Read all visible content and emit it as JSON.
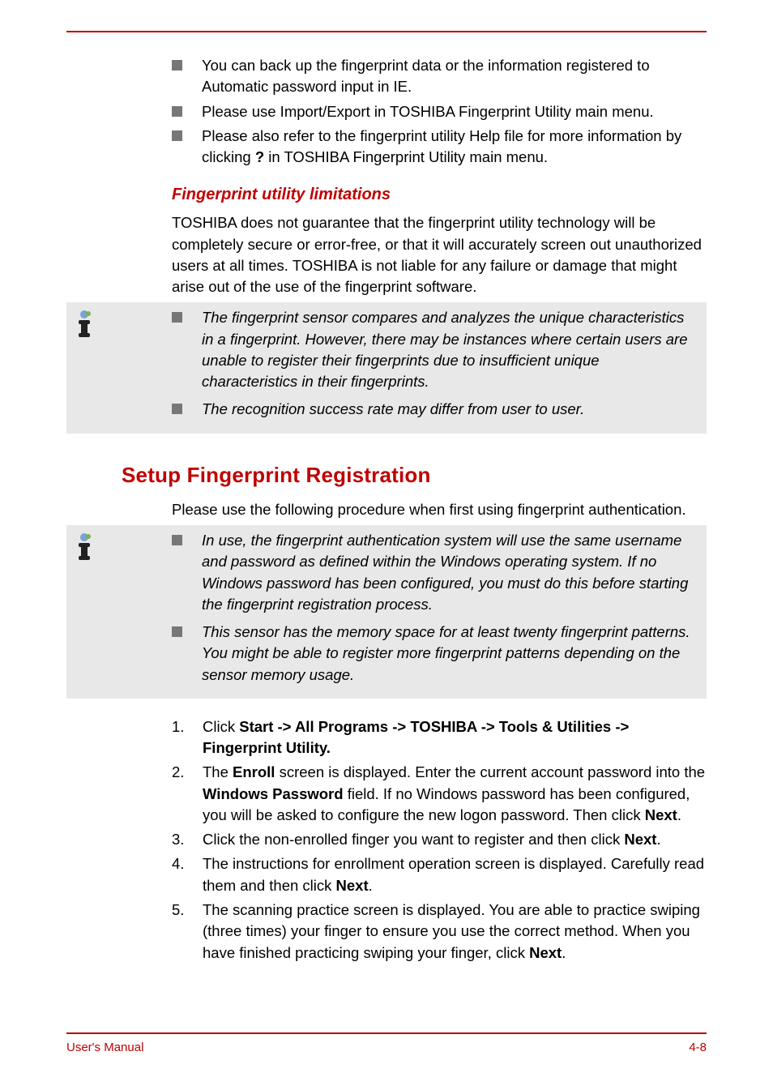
{
  "colors": {
    "accent": "#c00000",
    "bullet": "#777777",
    "note_bg": "#e8e8e8",
    "text": "#000000",
    "info_blue": "#7aa3d4",
    "info_green": "#7fb05a"
  },
  "typography": {
    "body_fontsize": 18.5,
    "h2_fontsize": 26,
    "h3_fontsize": 20,
    "footer_fontsize": 15,
    "line_height": 1.42
  },
  "bullets_top": [
    "You can back up the fingerprint data or the information registered to Automatic password input in IE.",
    "Please use Import/Export in TOSHIBA Fingerprint Utility main menu.",
    "Please also refer to the fingerprint utility Help file for more information by clicking <b>?</b> in TOSHIBA Fingerprint Utility main menu."
  ],
  "h3_limitations": "Fingerprint utility limitations",
  "para_limitations": "TOSHIBA does not guarantee that the fingerprint utility technology will be completely secure or error-free, or that it will accurately screen out unauthorized users at all times. TOSHIBA is not liable for any failure or damage that might arise out of the use of the fingerprint software.",
  "note1": [
    "The fingerprint sensor compares and analyzes the unique characteristics in a fingerprint. However, there may be instances where certain users are unable to register their fingerprints due to insufficient unique characteristics in their fingerprints.",
    "The recognition success rate may differ from user to user."
  ],
  "h2_setup": "Setup Fingerprint Registration",
  "para_setup": "Please use the following procedure when first using fingerprint authentication.",
  "note2": [
    "In use, the fingerprint authentication system will use the same username and password as defined within the Windows operating system. If no Windows password has been configured, you must do this before starting the fingerprint registration process.",
    "This sensor has the memory space for at least twenty fingerprint patterns. You might be able to register more fingerprint patterns depending on the sensor memory usage."
  ],
  "steps": [
    "Click <b>Start -> All Programs -> TOSHIBA -> Tools & Utilities -> Fingerprint Utility.</b>",
    "The <b>Enroll</b> screen is displayed. Enter the current account password into the <b>Windows Password</b> field. If no Windows password has been configured, you will be asked to configure the new logon password. Then click <b>Next</b>.",
    "Click the non-enrolled finger you want to register and then click <b>Next</b>.",
    "The instructions for enrollment operation screen is displayed. Carefully read them and then click <b>Next</b>.",
    "The scanning practice screen is displayed. You are able to practice swiping (three times) your finger to ensure you use the correct method. When you have finished practicing swiping your finger, click <b>Next</b>."
  ],
  "footer": {
    "left": "User's Manual",
    "right": "4-8"
  }
}
